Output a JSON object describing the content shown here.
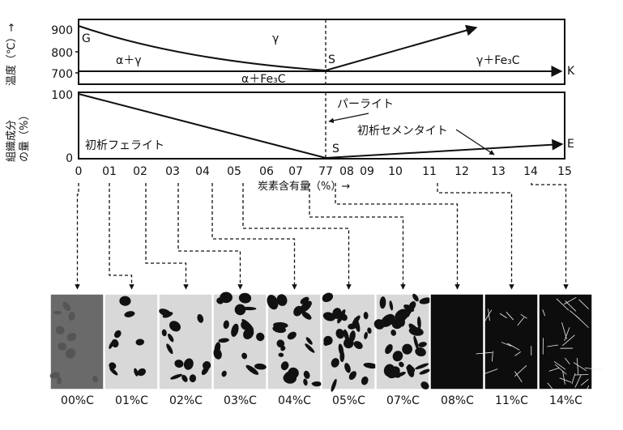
{
  "top_chart": {
    "y_axis_label": "温度（℃）→",
    "y_ticks": [
      {
        "label": "900",
        "value": 900
      },
      {
        "label": "800",
        "value": 800
      },
      {
        "label": "700",
        "value": 700
      }
    ],
    "point_labels": {
      "G": "G",
      "S": "S",
      "K": "K"
    },
    "region_labels": {
      "gamma": "γ",
      "alpha_gamma": "α＋γ",
      "gamma_fe3c": "γ＋Fe₃C",
      "alpha_fe3c": "α＋Fe₃C"
    }
  },
  "bottom_chart": {
    "y_axis_label_line1": "組織成分",
    "y_axis_label_line2": "の量（%）",
    "y_ticks": [
      {
        "label": "100",
        "value": 100
      },
      {
        "label": "0",
        "value": 0
      }
    ],
    "labels": {
      "pearlite": "パーライト",
      "pro_ferrite": "初析フェライト",
      "pro_cementite": "初析セメンタイト",
      "S": "S",
      "E": "E"
    }
  },
  "x_axis": {
    "label": "炭素含有量（%）→",
    "ticks": [
      "0",
      "01",
      "02",
      "03",
      "04",
      "05",
      "06",
      "07",
      "77",
      "08",
      "09",
      "10",
      "11",
      "12",
      "13",
      "14",
      "15"
    ]
  },
  "micrographs": [
    {
      "caption": "00%C",
      "carbon": 0.0
    },
    {
      "caption": "01%C",
      "carbon": 0.1
    },
    {
      "caption": "02%C",
      "carbon": 0.2
    },
    {
      "caption": "03%C",
      "carbon": 0.3
    },
    {
      "caption": "04%C",
      "carbon": 0.4
    },
    {
      "caption": "05%C",
      "carbon": 0.5
    },
    {
      "caption": "07%C",
      "carbon": 0.7
    },
    {
      "caption": "08%C",
      "carbon": 0.8
    },
    {
      "caption": "11%C",
      "carbon": 1.1
    },
    {
      "caption": "14%C",
      "carbon": 1.4
    }
  ]
}
